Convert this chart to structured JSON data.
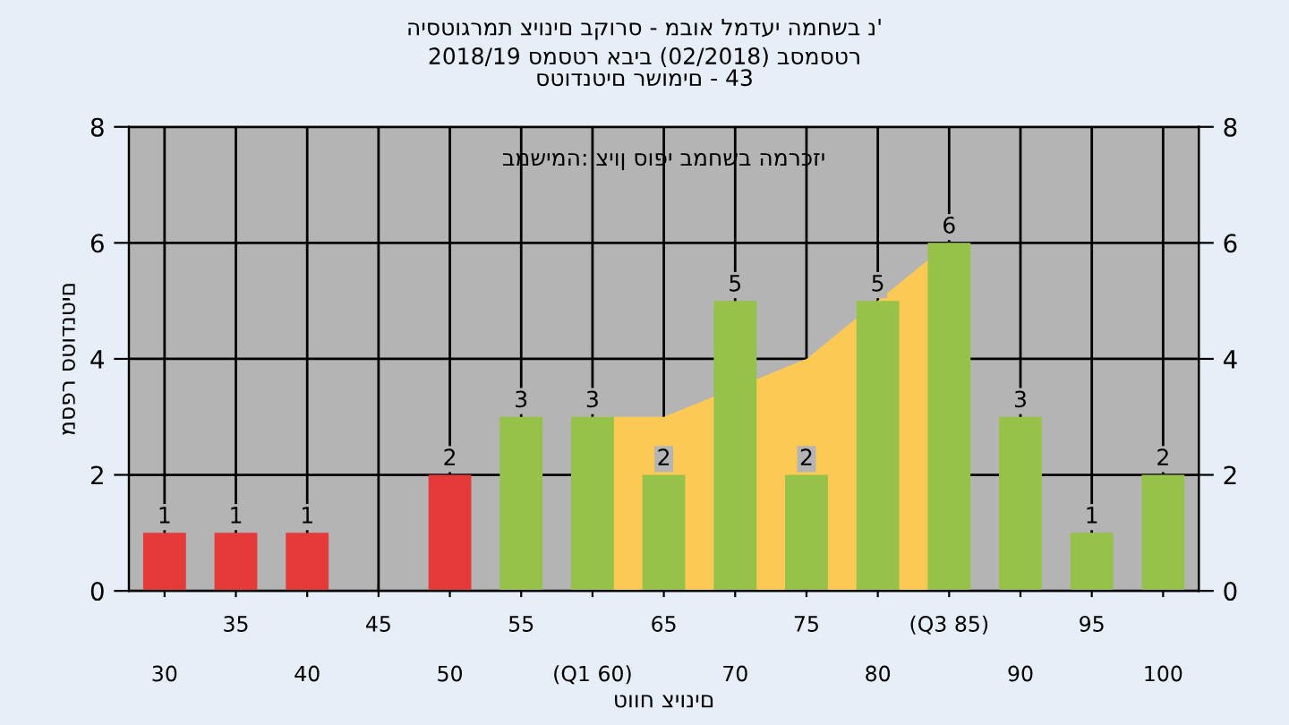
{
  "chart_data": {
    "type": "bar",
    "title": "היסטוגרמת ציונים בקורס - מבוא למדעי המחשב נ'",
    "subtitle": "2018/19 סמסטר אביב (02/2018) בסמסטר\nסטודנטים רשומים - 43",
    "xlabel": "טווח ציונים",
    "ylabel": "מספר סטודנטים",
    "annotations": [
      "במשימה: ציון סופי במחשב המרכזי"
    ],
    "categories": [
      "30",
      "35",
      "40",
      "45",
      "50",
      "55",
      "(Q1 60)",
      "65",
      "70",
      "75",
      "80",
      "(Q3 85)",
      "90",
      "95",
      "100"
    ],
    "series": [
      {
        "type": "area",
        "color": "#fdc955",
        "values": [
          null,
          null,
          null,
          null,
          null,
          null,
          3,
          3,
          null,
          4,
          null,
          6,
          null,
          null,
          null
        ]
      },
      {
        "colors": [
          "#e43a3a",
          "#e43a3a",
          "#e43a3a",
          "#e43a3a",
          "#e43a3a",
          "#96c24a",
          "#96c24a",
          "#96c24a",
          "#96c24a",
          "#96c24a",
          "#96c24a",
          "#96c24a",
          "#96c24a",
          "#96c24a",
          "#96c24a"
        ],
        "values": [
          1,
          1,
          1,
          0,
          2,
          3,
          3,
          2,
          5,
          2,
          5,
          6,
          3,
          1,
          2
        ],
        "value_labels": [
          "1",
          "1",
          "1",
          null,
          "2",
          "3",
          "3",
          "2",
          "5",
          "2",
          "5",
          "6",
          "3",
          "1",
          "2"
        ]
      }
    ],
    "ylim": [
      0,
      8
    ],
    "yticks": [
      0,
      2,
      4,
      6,
      8
    ],
    "y2lim": [
      0,
      8
    ],
    "y2ticks": [
      0,
      2,
      4,
      6,
      8
    ],
    "grid": true,
    "legend": false
  }
}
